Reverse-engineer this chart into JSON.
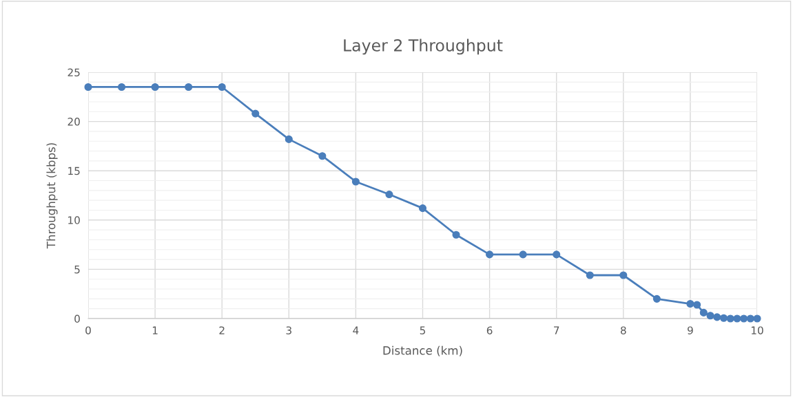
{
  "chart_data": {
    "type": "line",
    "title": "Layer 2 Throughput",
    "xlabel": "Distance (km)",
    "ylabel": "Throughput (kbps)",
    "x": [
      0,
      0.5,
      1,
      1.5,
      2,
      2.5,
      3,
      3.5,
      4,
      4.5,
      5,
      5.5,
      6,
      6.5,
      7,
      7.5,
      8,
      8.5,
      9,
      9.1,
      9.2,
      9.3,
      9.4,
      9.5,
      9.6,
      9.7,
      9.8,
      9.9,
      10
    ],
    "series": [
      {
        "color": "#4a7ebb",
        "values": [
          23.5,
          23.5,
          23.5,
          23.5,
          23.5,
          20.8,
          18.2,
          16.5,
          13.9,
          12.6,
          11.2,
          8.5,
          6.5,
          6.5,
          6.5,
          4.4,
          4.4,
          2.0,
          1.5,
          1.4,
          0.6,
          0.3,
          0.15,
          0.05,
          0,
          0,
          0,
          0,
          0
        ]
      }
    ],
    "xlim": [
      0,
      10
    ],
    "xticks": [
      0,
      1,
      2,
      3,
      4,
      5,
      6,
      7,
      8,
      9,
      10
    ],
    "ylim": [
      0,
      25
    ],
    "yticks": [
      0,
      5,
      10,
      15,
      20,
      25
    ],
    "grid": true,
    "marker": "circle",
    "line_style": "solid"
  }
}
